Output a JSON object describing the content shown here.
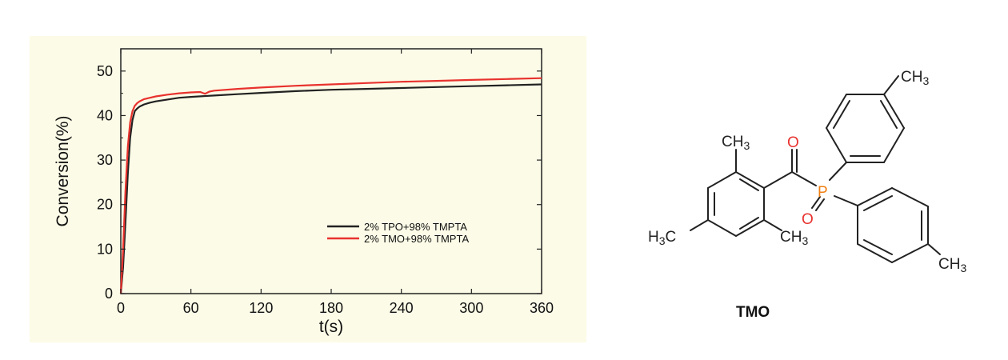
{
  "chart_data": {
    "type": "line",
    "xlabel": "t(s)",
    "ylabel": "Conversion(%)",
    "xlim": [
      0,
      360
    ],
    "ylim": [
      0,
      55
    ],
    "xticks": [
      0,
      60,
      120,
      180,
      240,
      300,
      360
    ],
    "yticks": [
      0,
      10,
      20,
      30,
      40,
      50
    ],
    "grid": false,
    "legend_position": "lower-right",
    "series": [
      {
        "name": "2% TPO+98% TMPTA",
        "color": "#222222",
        "x": [
          0,
          2,
          4,
          6,
          8,
          10,
          12,
          14,
          16,
          20,
          25,
          30,
          40,
          50,
          60,
          80,
          100,
          120,
          150,
          180,
          210,
          240,
          270,
          300,
          330,
          360
        ],
        "y": [
          0,
          6,
          16,
          27,
          35,
          39,
          41,
          41.6,
          42,
          42.5,
          42.9,
          43.2,
          43.6,
          44,
          44.2,
          44.5,
          44.8,
          45.1,
          45.5,
          45.8,
          46,
          46.2,
          46.4,
          46.6,
          46.8,
          47
        ]
      },
      {
        "name": "2% TMO+98% TMPTA",
        "color": "#e8322e",
        "x": [
          0,
          2,
          4,
          6,
          8,
          10,
          12,
          14,
          16,
          20,
          25,
          30,
          40,
          50,
          60,
          68,
          72,
          76,
          80,
          100,
          120,
          150,
          180,
          210,
          240,
          270,
          300,
          330,
          360
        ],
        "y": [
          0,
          10,
          23,
          33,
          38.5,
          41,
          42.2,
          42.8,
          43.2,
          43.7,
          44,
          44.3,
          44.7,
          45,
          45.2,
          45.3,
          44.9,
          45.4,
          45.6,
          46,
          46.3,
          46.7,
          47,
          47.3,
          47.6,
          47.8,
          48,
          48.2,
          48.4
        ]
      }
    ]
  },
  "molecule": {
    "name": "TMO",
    "atom_labels": {
      "methyl_top_ring": "CH3",
      "methyl_lower_ring": "CH3",
      "methyl_ortho_top": "CH3",
      "methyl_ortho_bottom": "CH3",
      "methyl_para_left": "H3C",
      "phosphorus": "P",
      "oxygen_carbonyl": "O",
      "oxygen_phosphoryl": "O"
    },
    "colors": {
      "bond": "#222222",
      "oxygen": "#e8322e",
      "phosphorus": "#f07f12"
    }
  }
}
